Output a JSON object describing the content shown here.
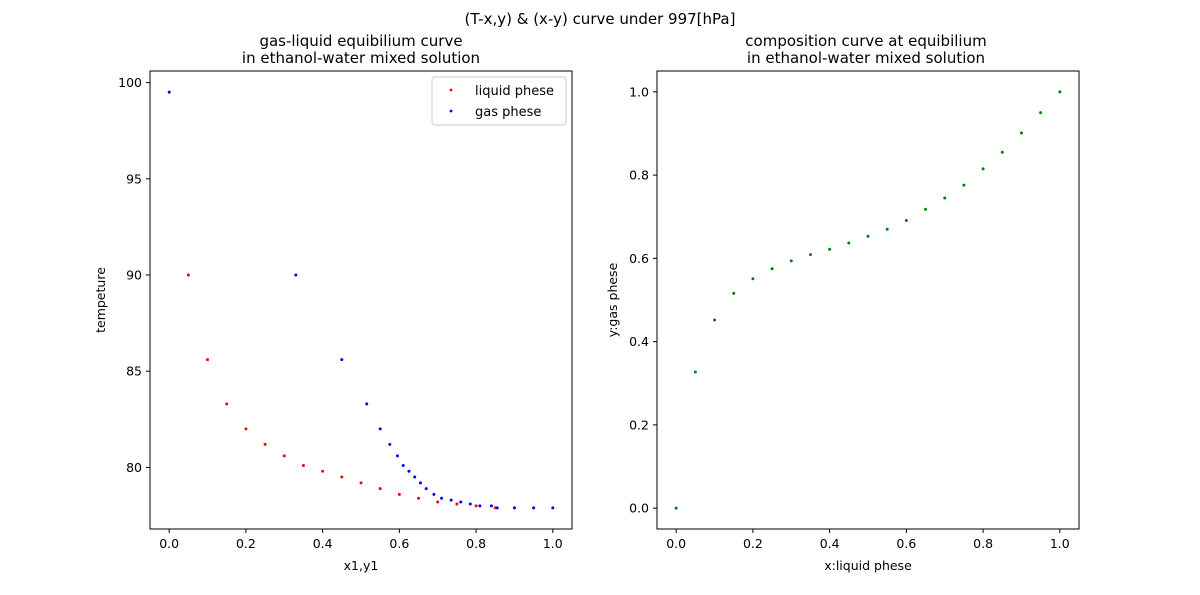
{
  "figure": {
    "suptitle": "(T-x,y) & (x-y) curve under 997[hPa]"
  },
  "chart_data": [
    {
      "type": "scatter",
      "title_line1": "gas-liquid equibilium curve",
      "title_line2": "in ethanol-water mixed solution",
      "xlabel": "x1,y1",
      "ylabel": "tempeture",
      "xlim": [
        -0.05,
        1.05
      ],
      "ylim": [
        76.8,
        100.6
      ],
      "xticks": [
        0.0,
        0.2,
        0.4,
        0.6,
        0.8,
        1.0
      ],
      "xtick_labels": [
        "0.0",
        "0.2",
        "0.4",
        "0.6",
        "0.8",
        "1.0"
      ],
      "yticks": [
        80,
        85,
        90,
        95,
        100
      ],
      "ytick_labels": [
        "80",
        "85",
        "90",
        "95",
        "100"
      ],
      "grid": false,
      "legend_position": "top-right",
      "series": [
        {
          "name": "liquid phese",
          "color": "#ff0000",
          "x": [
            0.05,
            0.1,
            0.15,
            0.2,
            0.25,
            0.3,
            0.35,
            0.4,
            0.45,
            0.5,
            0.55,
            0.6,
            0.65,
            0.7,
            0.75,
            0.8,
            0.85
          ],
          "y": [
            90.0,
            85.6,
            83.3,
            82.0,
            81.2,
            80.6,
            80.1,
            79.8,
            79.5,
            79.2,
            78.9,
            78.6,
            78.4,
            78.2,
            78.1,
            78.0,
            77.9
          ]
        },
        {
          "name": "gas phese",
          "color": "#0000ff",
          "x": [
            0.0,
            0.33,
            0.45,
            0.515,
            0.55,
            0.575,
            0.595,
            0.61,
            0.625,
            0.64,
            0.655,
            0.67,
            0.69,
            0.71,
            0.735,
            0.76,
            0.785,
            0.81,
            0.84,
            0.855,
            0.9,
            0.95,
            1.0
          ],
          "y": [
            99.5,
            90.0,
            85.6,
            83.3,
            82.0,
            81.2,
            80.6,
            80.1,
            79.8,
            79.5,
            79.2,
            78.9,
            78.6,
            78.4,
            78.3,
            78.2,
            78.1,
            78.0,
            78.0,
            77.9,
            77.9,
            77.9,
            77.9
          ]
        }
      ]
    },
    {
      "type": "scatter",
      "title_line1": "composition curve at equibilium",
      "title_line2": "in ethanol-water mixed solution",
      "xlabel": "x:liquid phese",
      "ylabel": "y:gas phese",
      "xlim": [
        -0.05,
        1.05
      ],
      "ylim": [
        -0.05,
        1.05
      ],
      "xticks": [
        0.0,
        0.2,
        0.4,
        0.6,
        0.8,
        1.0
      ],
      "xtick_labels": [
        "0.0",
        "0.2",
        "0.4",
        "0.6",
        "0.8",
        "1.0"
      ],
      "yticks": [
        0.0,
        0.2,
        0.4,
        0.6,
        0.8,
        1.0
      ],
      "ytick_labels": [
        "0.0",
        "0.2",
        "0.4",
        "0.6",
        "0.8",
        "1.0"
      ],
      "grid": false,
      "series": [
        {
          "color": "#008000",
          "x": [
            0.0,
            0.05,
            0.1,
            0.15,
            0.2,
            0.25,
            0.3,
            0.35,
            0.4,
            0.45,
            0.5,
            0.55,
            0.6,
            0.65,
            0.7,
            0.75,
            0.8,
            0.85,
            0.9,
            0.95,
            1.0
          ],
          "y": [
            0.0,
            0.327,
            0.452,
            0.516,
            0.551,
            0.575,
            0.594,
            0.609,
            0.622,
            0.637,
            0.653,
            0.67,
            0.691,
            0.718,
            0.745,
            0.776,
            0.815,
            0.855,
            0.901,
            0.95,
            1.0
          ]
        }
      ]
    }
  ]
}
